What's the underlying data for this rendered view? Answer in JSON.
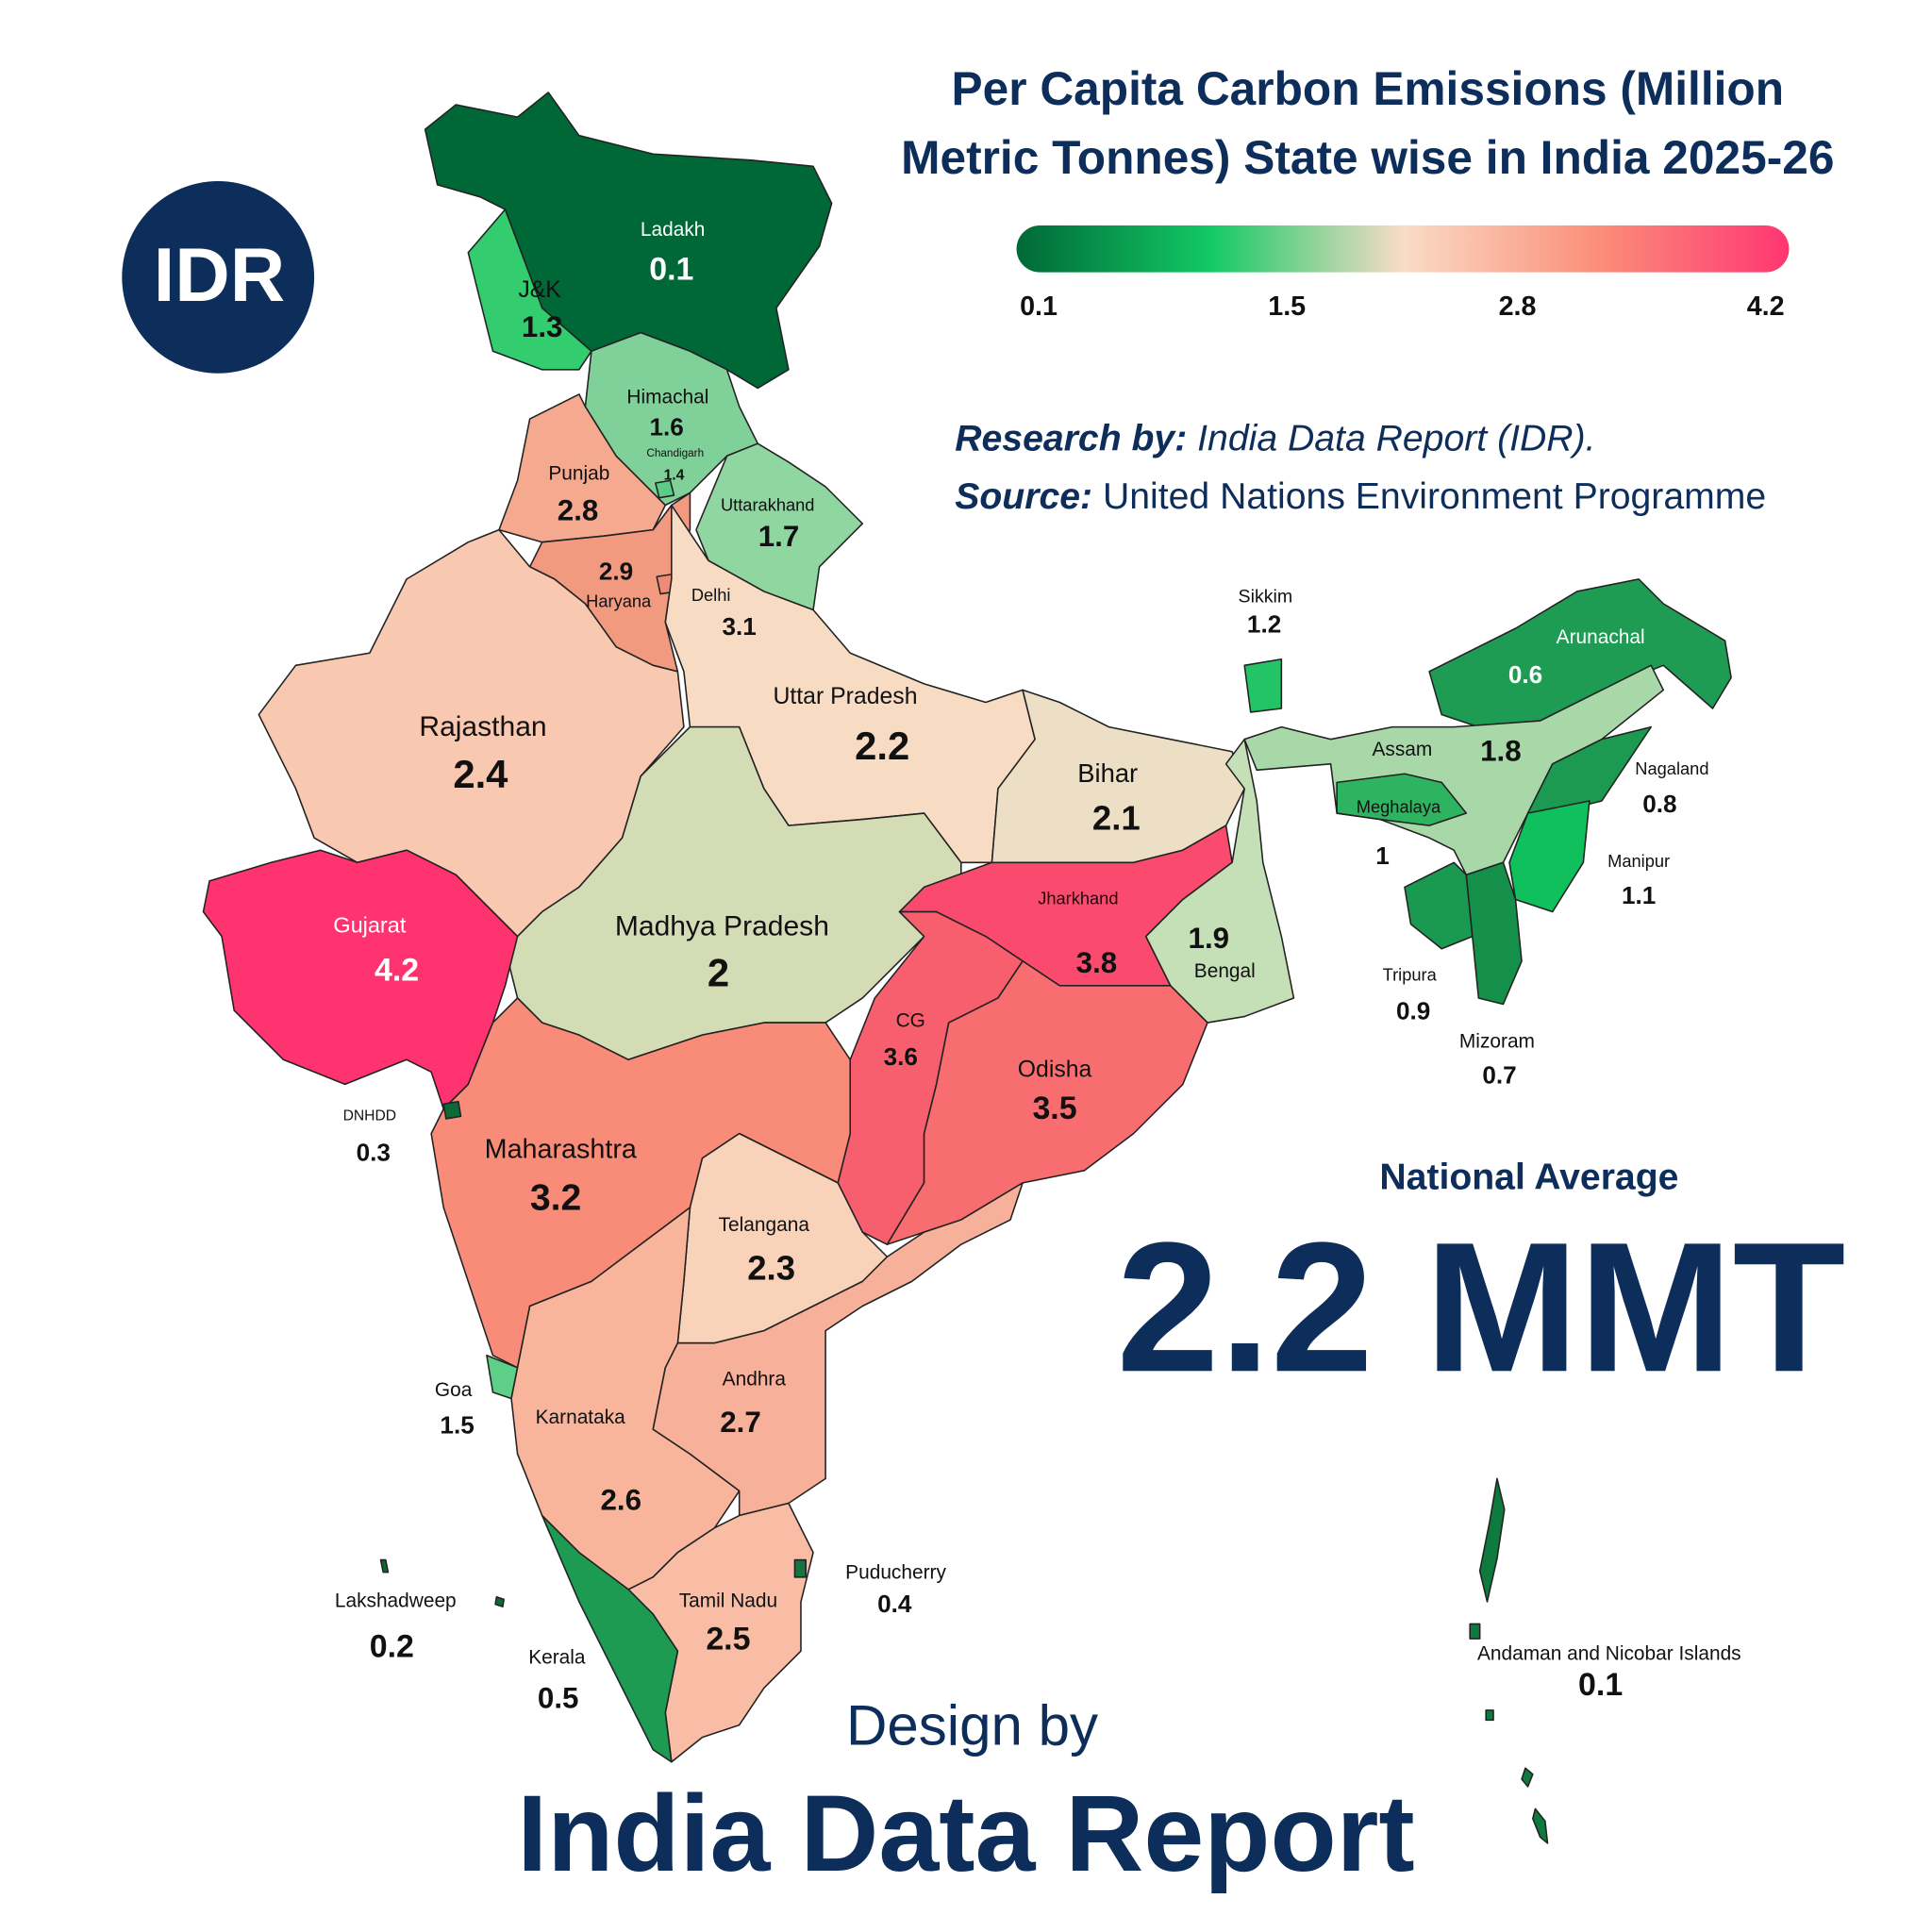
{
  "logo": "IDR",
  "chart_data": {
    "type": "choropleth",
    "title": "Per Capita Carbon Emissions (Million Metric Tonnes) State wise in India 2025-26",
    "colorbar": {
      "colors": [
        "#006837",
        "#12c965",
        "#f9dcc6",
        "#fb8f7a",
        "#ff3672"
      ],
      "lim": [
        0.1,
        4.2
      ],
      "ticks": [
        0.1,
        1.5,
        2.8,
        4.2
      ]
    },
    "regions": [
      {
        "name": "Ladakh",
        "value": 0.1,
        "color": "#006837"
      },
      {
        "name": "J&K",
        "value": 1.3,
        "color": "#33cc6e"
      },
      {
        "name": "Himachal",
        "value": 1.6,
        "color": "#7fd199"
      },
      {
        "name": "Chandigarh",
        "value": 1.4,
        "color": "#5dca85"
      },
      {
        "name": "Punjab",
        "value": 2.8,
        "color": "#f5a98e"
      },
      {
        "name": "Uttarakhand",
        "value": 1.7,
        "color": "#8fd6a0"
      },
      {
        "name": "Haryana",
        "value": 2.9,
        "color": "#f29a80"
      },
      {
        "name": "Delhi",
        "value": 3.1,
        "color": "#ef8b74"
      },
      {
        "name": "Rajasthan",
        "value": 2.4,
        "color": "#f9c8b0"
      },
      {
        "name": "Uttar Pradesh",
        "value": 2.2,
        "color": "#f8dbc3"
      },
      {
        "name": "Bihar",
        "value": 2.1,
        "color": "#ecdfc5"
      },
      {
        "name": "Madhya Pradesh",
        "value": 2,
        "color": "#d4dcb6"
      },
      {
        "name": "Gujarat",
        "value": 4.2,
        "color": "#ff3370"
      },
      {
        "name": "Jharkhand",
        "value": 3.8,
        "color": "#fa4a6e"
      },
      {
        "name": "Bengal",
        "value": 1.9,
        "color": "#c5dfb6"
      },
      {
        "name": "CG",
        "value": 3.6,
        "color": "#f75f6f"
      },
      {
        "name": "Odisha",
        "value": 3.5,
        "color": "#f86d70"
      },
      {
        "name": "Maharashtra",
        "value": 3.2,
        "color": "#f98c78"
      },
      {
        "name": "DNHDD",
        "value": 0.3,
        "color": "#0c6a39"
      },
      {
        "name": "Telangana",
        "value": 2.3,
        "color": "#f9d2ba"
      },
      {
        "name": "Goa",
        "value": 1.5,
        "color": "#5ecf86"
      },
      {
        "name": "Karnataka",
        "value": 2.6,
        "color": "#f8b59c"
      },
      {
        "name": "Andhra",
        "value": 2.7,
        "color": "#f7b099"
      },
      {
        "name": "Tamil Nadu",
        "value": 2.5,
        "color": "#f9bca5"
      },
      {
        "name": "Puducherry",
        "value": 0.4,
        "color": "#17733f"
      },
      {
        "name": "Kerala",
        "value": 0.5,
        "color": "#1e9b52"
      },
      {
        "name": "Lakshadweep",
        "value": 0.2,
        "color": "#0c6a39"
      },
      {
        "name": "Sikkim",
        "value": 1.2,
        "color": "#22c465"
      },
      {
        "name": "Arunachal",
        "value": 0.6,
        "color": "#1f9c54"
      },
      {
        "name": "Assam",
        "value": 1.8,
        "color": "#a8d8a8"
      },
      {
        "name": "Meghalaya",
        "value": 1,
        "color": "#2eb360"
      },
      {
        "name": "Nagaland",
        "value": 0.8,
        "color": "#1d9a52"
      },
      {
        "name": "Manipur",
        "value": 1.1,
        "color": "#10c05c"
      },
      {
        "name": "Tripura",
        "value": 0.9,
        "color": "#1a9a50"
      },
      {
        "name": "Mizoram",
        "value": 0.7,
        "color": "#15904a"
      },
      {
        "name": "Andaman and Nicobar Islands",
        "value": 0.1,
        "color": "#0e7a3e"
      }
    ]
  },
  "research_by": {
    "label": "Research by:",
    "text": "India Data Report (IDR)."
  },
  "source": {
    "label": "Source:",
    "text": "United Nations Environment Programme"
  },
  "national_average": {
    "label": "National Average",
    "value": "2.2 MMT"
  },
  "design": {
    "label": "Design by",
    "name": "India Data Report"
  }
}
